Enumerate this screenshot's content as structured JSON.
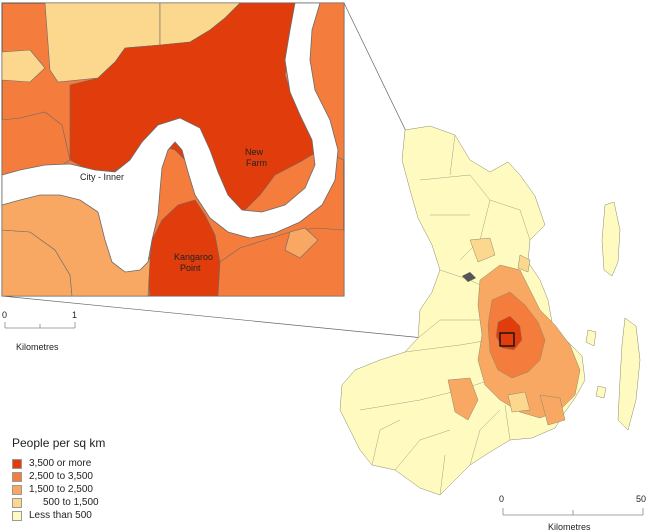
{
  "legend": {
    "title": "People per sq km",
    "items": [
      {
        "label": "3,500 or more",
        "color": "#e03c0c"
      },
      {
        "label": "2,500 to 3,500",
        "color": "#f47c3c"
      },
      {
        "label": "1,500 to 2,500",
        "color": "#f8a862"
      },
      {
        "label": "500 to 1,500",
        "color": "#fcd88e"
      },
      {
        "label": "Less than 500",
        "color": "#fefac0"
      }
    ]
  },
  "inset": {
    "labels": {
      "city_inner": "City - Inner",
      "new_farm_1": "New",
      "new_farm_2": "Farm",
      "kangaroo_1": "Kangaroo",
      "kangaroo_2": "Point"
    },
    "scale": {
      "zero": "0",
      "one": "1",
      "unit": "Kilometres"
    }
  },
  "main_scale": {
    "zero": "0",
    "fifty": "50",
    "unit": "Kilometres"
  },
  "colors": {
    "river": "#ffffff",
    "border": "#6b6b6b",
    "water": "#8a8a8a"
  }
}
